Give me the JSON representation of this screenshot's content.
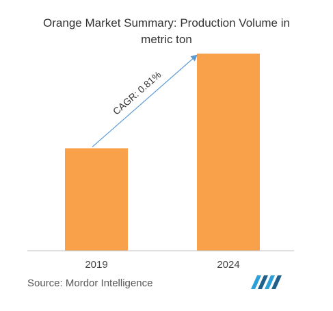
{
  "title_line1": "Orange Market Summary: Production Volume in",
  "title_line2": "metric ton",
  "source": "Source: Mordor Intelligence",
  "colors": {
    "bar": "#F9A04B",
    "arrow": "#5B9BD5",
    "axis": "#BFBFBF",
    "logo": "#2A9FD8",
    "logo_dark": "#1F5F8B"
  },
  "chart_data": {
    "type": "bar",
    "title": "Orange Market Summary: Production Volume in metric ton",
    "categories": [
      "2019",
      "2024"
    ],
    "values": [
      52,
      100
    ],
    "ylim": [
      0,
      105
    ],
    "grid": false,
    "annotation": "CAGR: 0.81%"
  }
}
